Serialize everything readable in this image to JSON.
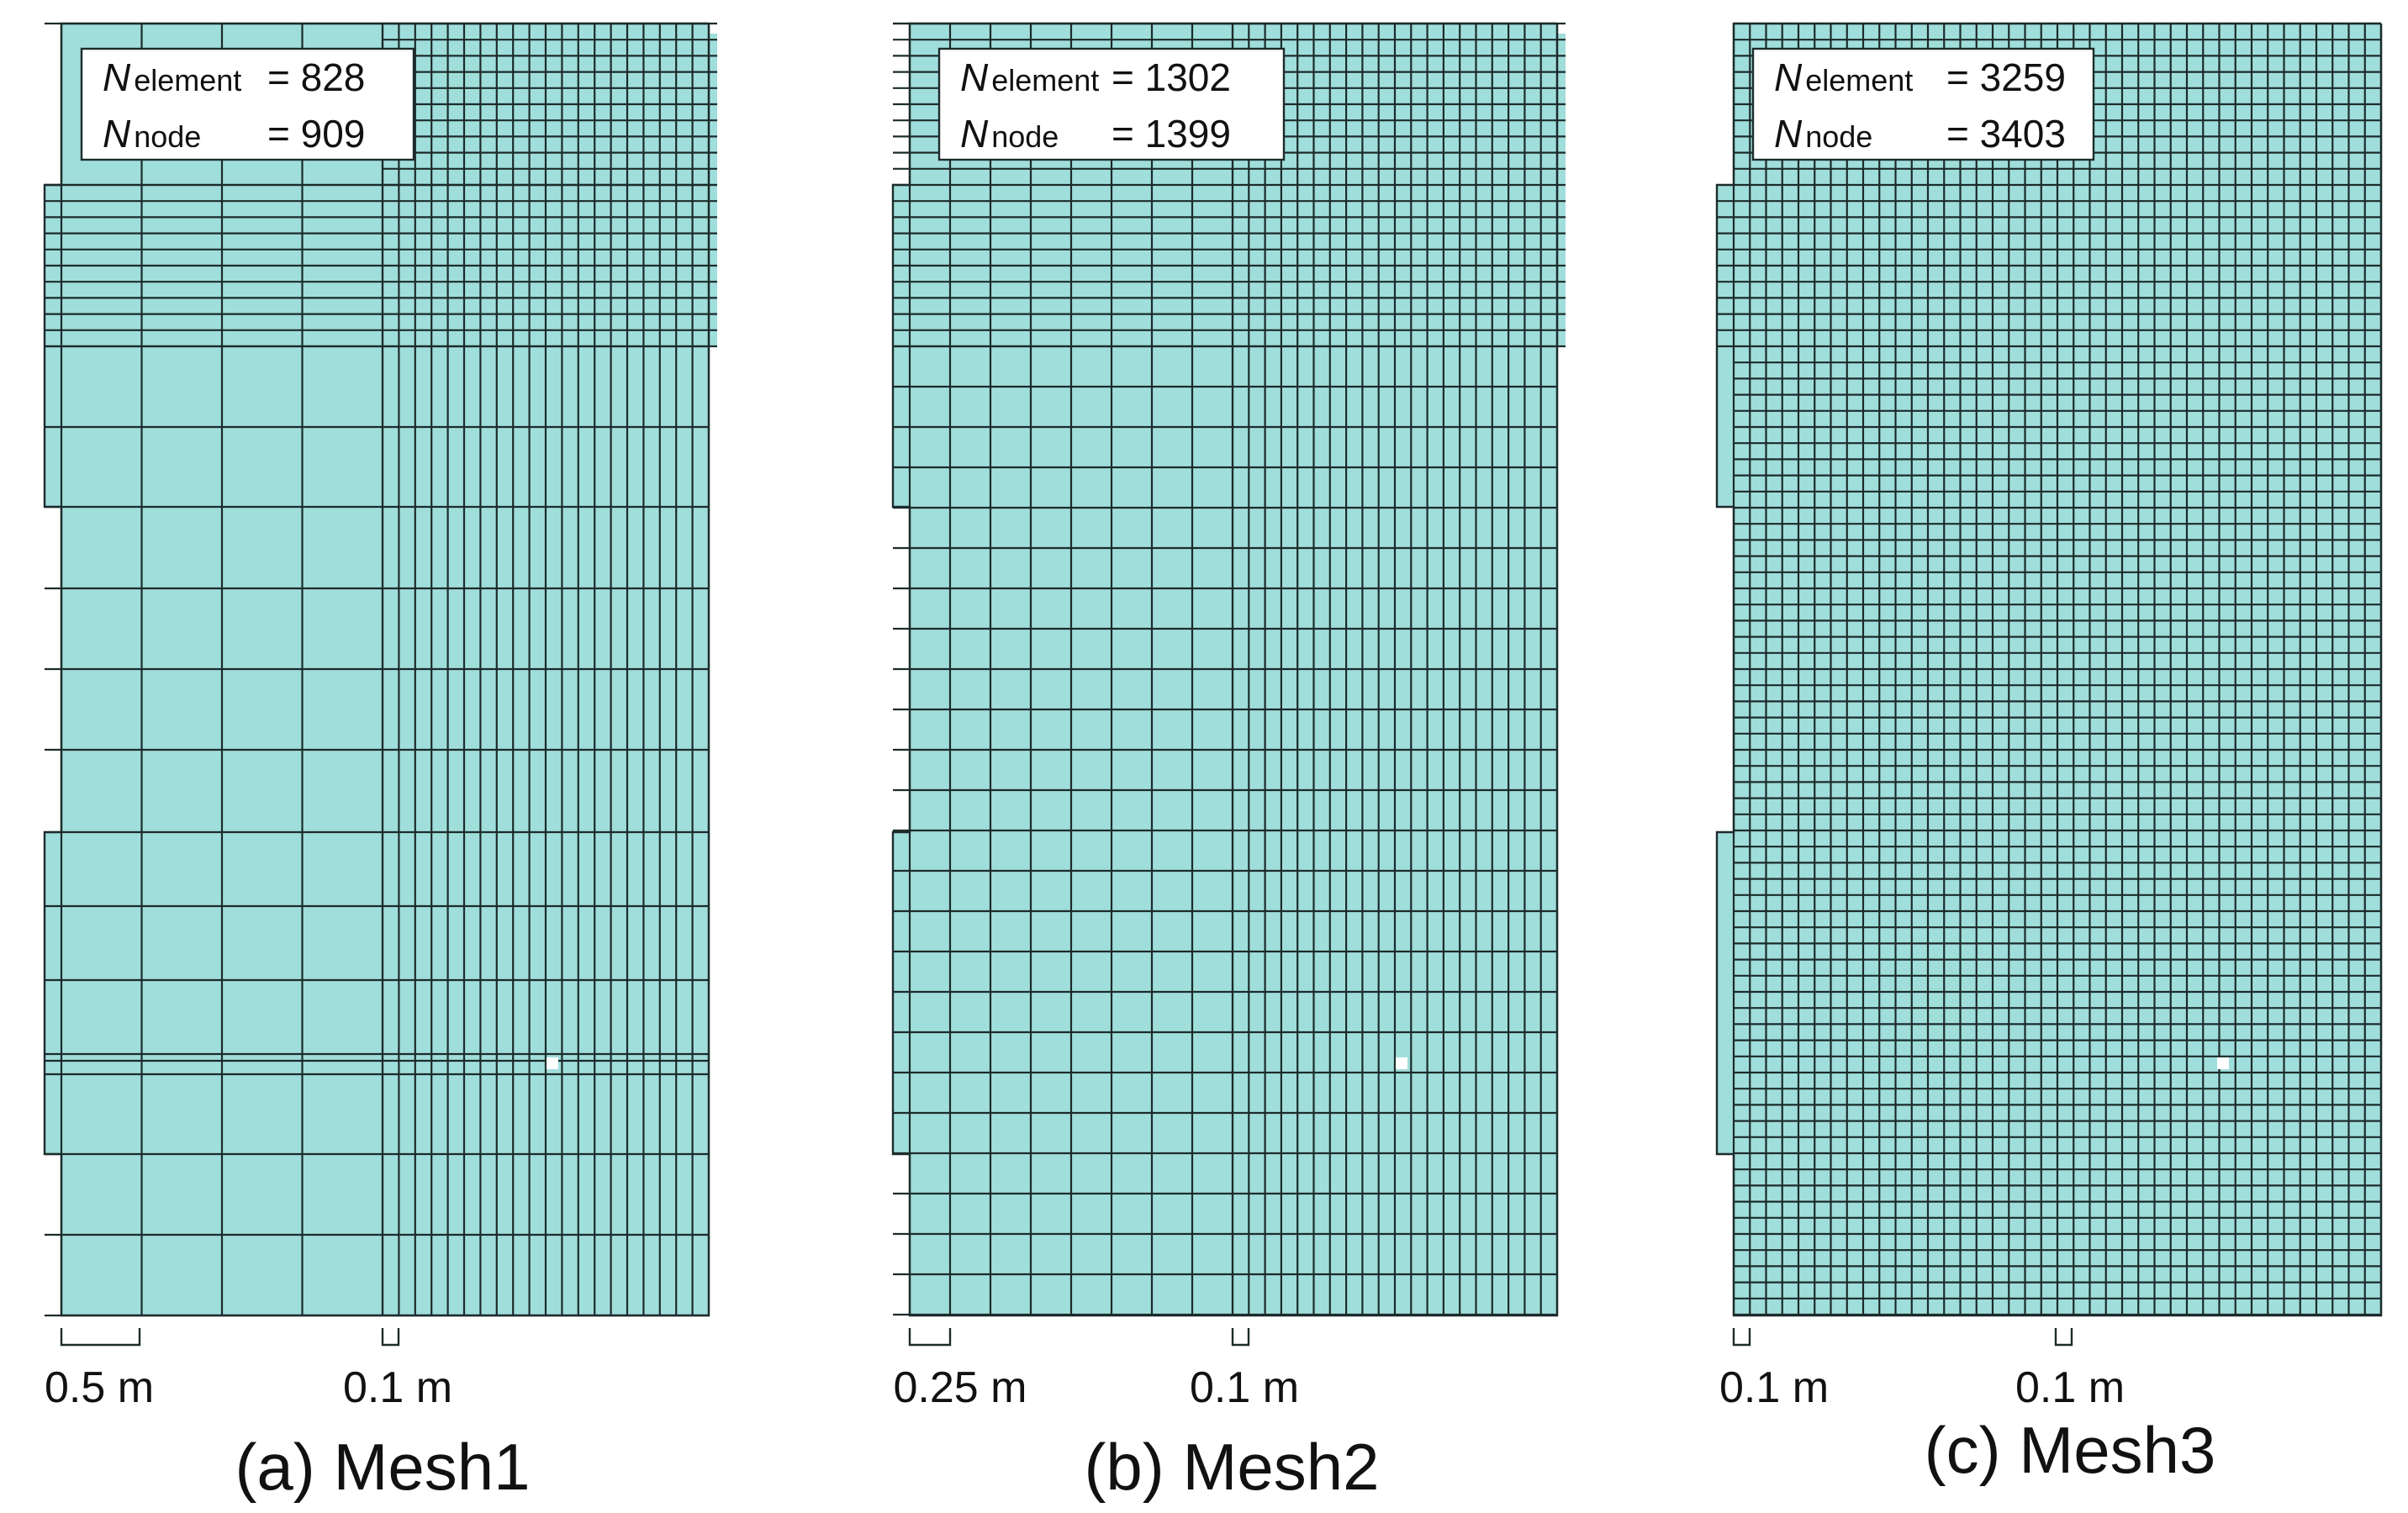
{
  "colors": {
    "mesh": "#a0dedb",
    "line": "#1c2b2b",
    "probe": "#ffffff"
  },
  "panels": [
    {
      "id": "mesh1",
      "caption": "(a) Mesh1",
      "n_symbol": "N",
      "element_sub": "element",
      "node_sub": "node",
      "element_value": "= 828",
      "node_value": "= 909",
      "scale_coarse": "0.5 m",
      "scale_fine": "0.1 m"
    },
    {
      "id": "mesh2",
      "caption": "(b) Mesh2",
      "n_symbol": "N",
      "element_sub": "element",
      "node_sub": "node",
      "element_value": "= 1302",
      "node_value": "= 1399",
      "scale_coarse": "0.25 m",
      "scale_fine": "0.1 m"
    },
    {
      "id": "mesh3",
      "caption": "(c) Mesh3",
      "n_symbol": "N",
      "element_sub": "element",
      "node_sub": "node",
      "element_value": "= 3259",
      "node_value": "= 3403",
      "scale_coarse": "0.1 m",
      "scale_fine": "0.1 m"
    }
  ]
}
